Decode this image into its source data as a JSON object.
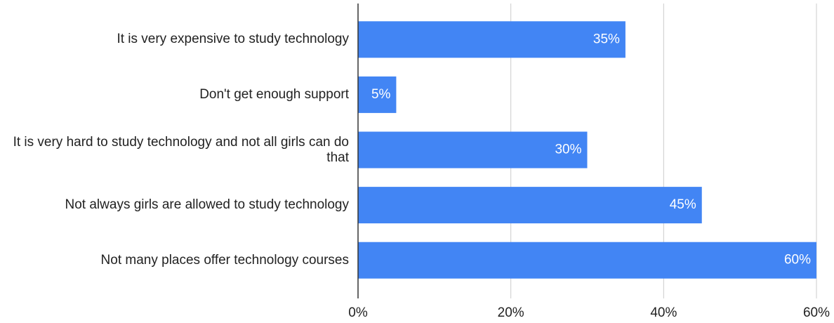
{
  "chart_data": {
    "type": "barh",
    "categories": [
      "It is very expensive to study technology",
      "Don't get enough support",
      "It is very hard to study technology and not all girls can do that",
      "Not always girls are allowed to study technology",
      "Not many places offer technology courses"
    ],
    "values": [
      35,
      5,
      30,
      45,
      60
    ],
    "value_labels": [
      "35%",
      "5%",
      "30%",
      "45%",
      "60%"
    ],
    "color": "#4285f4",
    "xlim": [
      0,
      60
    ],
    "xticks": [
      {
        "value": 0,
        "label": "0%"
      },
      {
        "value": 20,
        "label": "20%"
      },
      {
        "value": 40,
        "label": "40%"
      },
      {
        "value": 60,
        "label": "60%"
      }
    ],
    "grid": true
  }
}
